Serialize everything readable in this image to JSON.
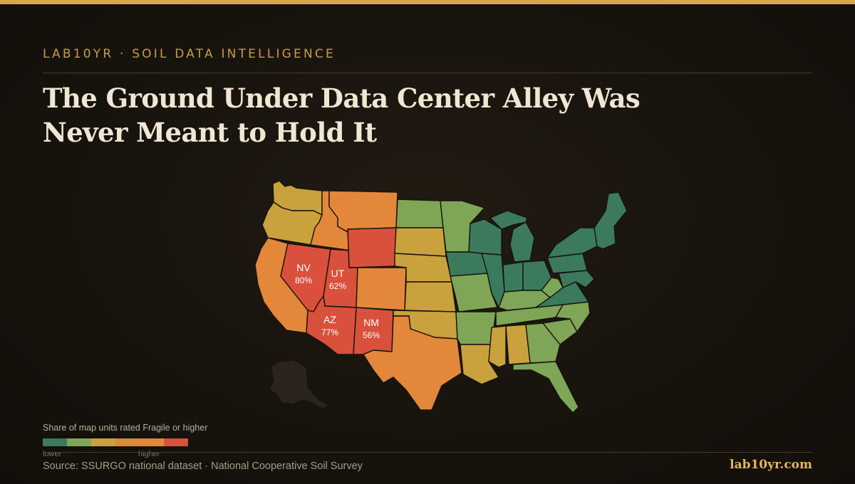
{
  "header": {
    "kicker": "LAB10YR · SOIL DATA INTELLIGENCE",
    "headline_line1": "The Ground Under Data Center Alley Was",
    "headline_line2": "Never Meant to Hold It"
  },
  "colors": {
    "accent": "#d4a84b",
    "scale": [
      "#3b7a5c",
      "#7ea656",
      "#c9a23e",
      "#d98a3c",
      "#e3873a",
      "#d9503c"
    ],
    "state_colors": {
      "dark_green": "#3b7a5c",
      "green": "#7ea656",
      "gold": "#c9a23e",
      "orange": "#e3873a",
      "red": "#d9503c",
      "alaska": "#2a241d"
    }
  },
  "map": {
    "highlighted_states": [
      {
        "code": "NV",
        "value": "80%"
      },
      {
        "code": "UT",
        "value": "62%"
      },
      {
        "code": "AZ",
        "value": "77%"
      },
      {
        "code": "NM",
        "value": "56%"
      }
    ]
  },
  "legend": {
    "title": "Share of map units rated Fragile or higher",
    "low_label": "lower",
    "high_label": "higher"
  },
  "footer": {
    "source": "Source: SSURGO national dataset · National Cooperative Soil Survey",
    "brand": "lab10yr.com"
  }
}
